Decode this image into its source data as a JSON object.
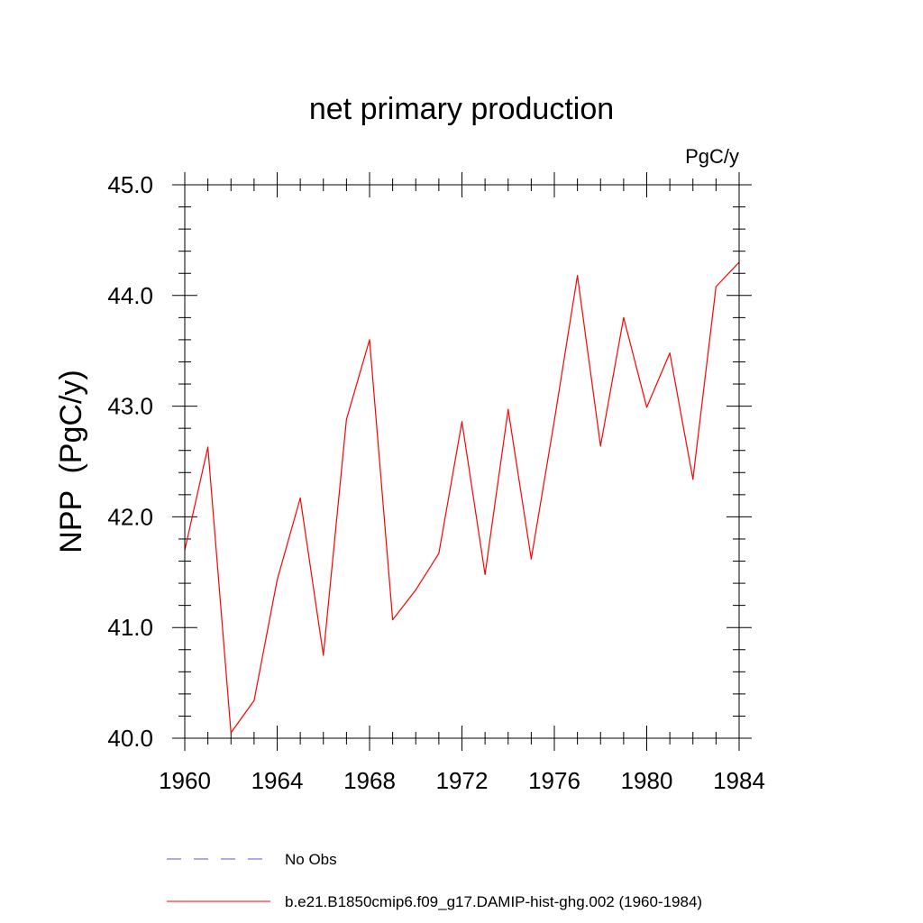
{
  "chart_data": {
    "type": "line",
    "title": "net primary production",
    "units_label": "PgC/y",
    "ylabel": "NPP  (PgC/y)",
    "xlabel": "",
    "xlim": [
      1960,
      1984
    ],
    "ylim": [
      40.0,
      45.0
    ],
    "x_ticks": [
      1960,
      1964,
      1968,
      1972,
      1976,
      1980,
      1984
    ],
    "x_tick_labels": [
      "1960",
      "1964",
      "1968",
      "1972",
      "1976",
      "1980",
      "1984"
    ],
    "y_ticks": [
      40.0,
      41.0,
      42.0,
      43.0,
      44.0,
      45.0
    ],
    "y_tick_labels": [
      "40.0",
      "41.0",
      "42.0",
      "43.0",
      "44.0",
      "45.0"
    ],
    "grid": false,
    "legend_position": "bottom",
    "series": [
      {
        "name": "b.e21.B1850cmip6.f09_g17.DAMIP-hist-ghg.002 (1960-1984)",
        "color": "#ff0000",
        "style": "solid",
        "x": [
          1960,
          1961,
          1962,
          1963,
          1964,
          1965,
          1966,
          1967,
          1968,
          1969,
          1970,
          1971,
          1972,
          1973,
          1974,
          1975,
          1976,
          1977,
          1978,
          1979,
          1980,
          1981,
          1982,
          1983,
          1984
        ],
        "values": [
          41.7,
          42.63,
          40.05,
          40.34,
          41.43,
          42.17,
          40.75,
          42.88,
          43.6,
          41.07,
          41.34,
          41.67,
          42.86,
          41.48,
          42.97,
          41.62,
          42.87,
          44.18,
          42.64,
          43.8,
          42.99,
          43.48,
          42.34,
          44.08,
          44.3
        ]
      }
    ],
    "legend": [
      {
        "label": "No Obs",
        "color": "#5555cc",
        "style": "dashed"
      },
      {
        "label": "b.e21.B1850cmip6.f09_g17.DAMIP-hist-ghg.002 (1960-1984)",
        "color": "#ff0000",
        "style": "solid"
      }
    ]
  }
}
